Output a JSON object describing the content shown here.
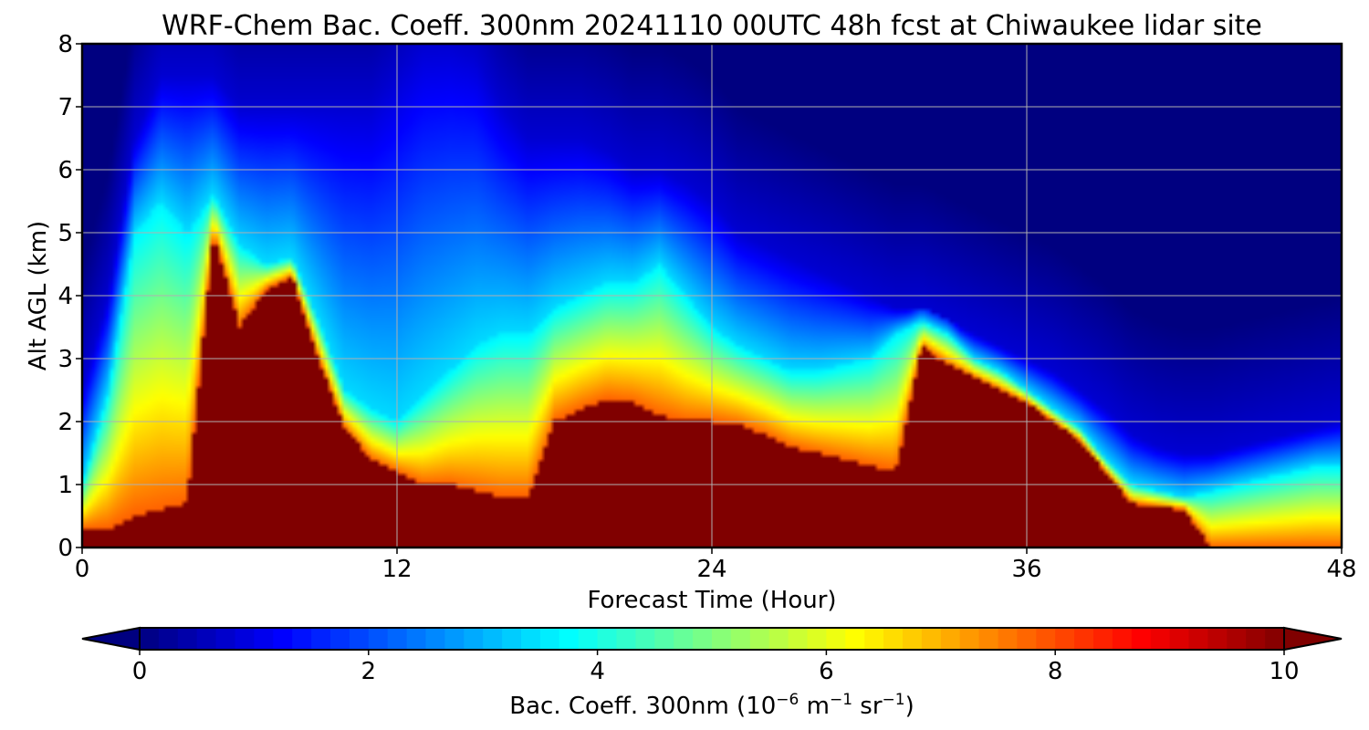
{
  "chart_data": {
    "type": "heatmap",
    "title": "WRF-Chem Bac. Coeff. 300nm  20241110 00UTC 48h fcst at Chiwaukee lidar site",
    "xlabel": "Forecast Time (Hour)",
    "ylabel": "Alt AGL (km)",
    "xlim": [
      0,
      48
    ],
    "ylim": [
      0,
      8
    ],
    "xticks": [
      "0",
      "12",
      "24",
      "36",
      "48"
    ],
    "yticks": [
      "0",
      "1",
      "2",
      "3",
      "4",
      "5",
      "6",
      "7",
      "8"
    ],
    "grid": true,
    "colormap": "jet",
    "colorbar": {
      "label_prefix": "Bac. Coeff. 300nm  (10",
      "label_exp1": "−6",
      "label_mid": " m",
      "label_exp2": "−1",
      "label_mid2": " sr",
      "label_exp3": "−1",
      "label_suffix": ")",
      "range": [
        0,
        10
      ],
      "ticks": [
        "0",
        "2",
        "4",
        "6",
        "8",
        "10"
      ],
      "extend": "both",
      "orientation": "horizontal"
    },
    "times": [
      0,
      1,
      2,
      3,
      4,
      5,
      6,
      7,
      8,
      9,
      10,
      11,
      12,
      13,
      14,
      15,
      16,
      17,
      18,
      19,
      20,
      21,
      22,
      23,
      24,
      25,
      26,
      27,
      28,
      29,
      30,
      31,
      32,
      33,
      34,
      35,
      36,
      37,
      38,
      39,
      40,
      41,
      42,
      43,
      44,
      45,
      46,
      47,
      48
    ],
    "max_feature_top_km": [
      0.3,
      0.3,
      0.5,
      0.6,
      0.7,
      5.0,
      3.5,
      4.1,
      4.3,
      3.0,
      1.9,
      1.4,
      1.2,
      1.0,
      1.0,
      0.9,
      0.8,
      0.8,
      2.0,
      2.2,
      2.35,
      2.3,
      2.1,
      2.0,
      2.0,
      1.95,
      1.8,
      1.6,
      1.5,
      1.4,
      1.3,
      1.2,
      3.2,
      2.9,
      2.7,
      2.5,
      2.3,
      2.0,
      1.7,
      1.2,
      0.7,
      0.65,
      0.6,
      0.0,
      0.0,
      0.0,
      0.0,
      0.0,
      0.0
    ],
    "moderate_top_km": [
      1.0,
      2.5,
      5.0,
      5.5,
      5.0,
      5.6,
      4.8,
      4.5,
      4.6,
      3.6,
      2.5,
      2.2,
      2.0,
      2.4,
      2.8,
      3.2,
      3.4,
      3.4,
      3.8,
      4.0,
      4.2,
      4.2,
      4.5,
      4.0,
      3.5,
      3.2,
      3.0,
      2.8,
      2.8,
      2.9,
      3.0,
      3.4,
      3.6,
      3.4,
      3.0,
      2.8,
      2.5,
      2.2,
      1.9,
      1.4,
      1.0,
      0.9,
      0.8,
      0.9,
      1.0,
      1.1,
      1.2,
      1.3,
      1.3
    ],
    "background_ramp_top_km": [
      2.5,
      4.0,
      6.5,
      7.5,
      7.5,
      7.5,
      7.0,
      7.0,
      7.0,
      7.0,
      7.0,
      7.0,
      7.5,
      8.0,
      8.0,
      7.8,
      7.0,
      6.5,
      6.5,
      6.5,
      6.3,
      6.0,
      6.0,
      5.8,
      5.5,
      5.0,
      4.8,
      4.6,
      4.4,
      4.2,
      4.0,
      3.8,
      3.8,
      3.6,
      3.4,
      3.2,
      3.0,
      2.8,
      2.5,
      2.2,
      1.8,
      1.6,
      1.5,
      1.5,
      1.6,
      1.7,
      1.8,
      1.9,
      2.0
    ]
  }
}
